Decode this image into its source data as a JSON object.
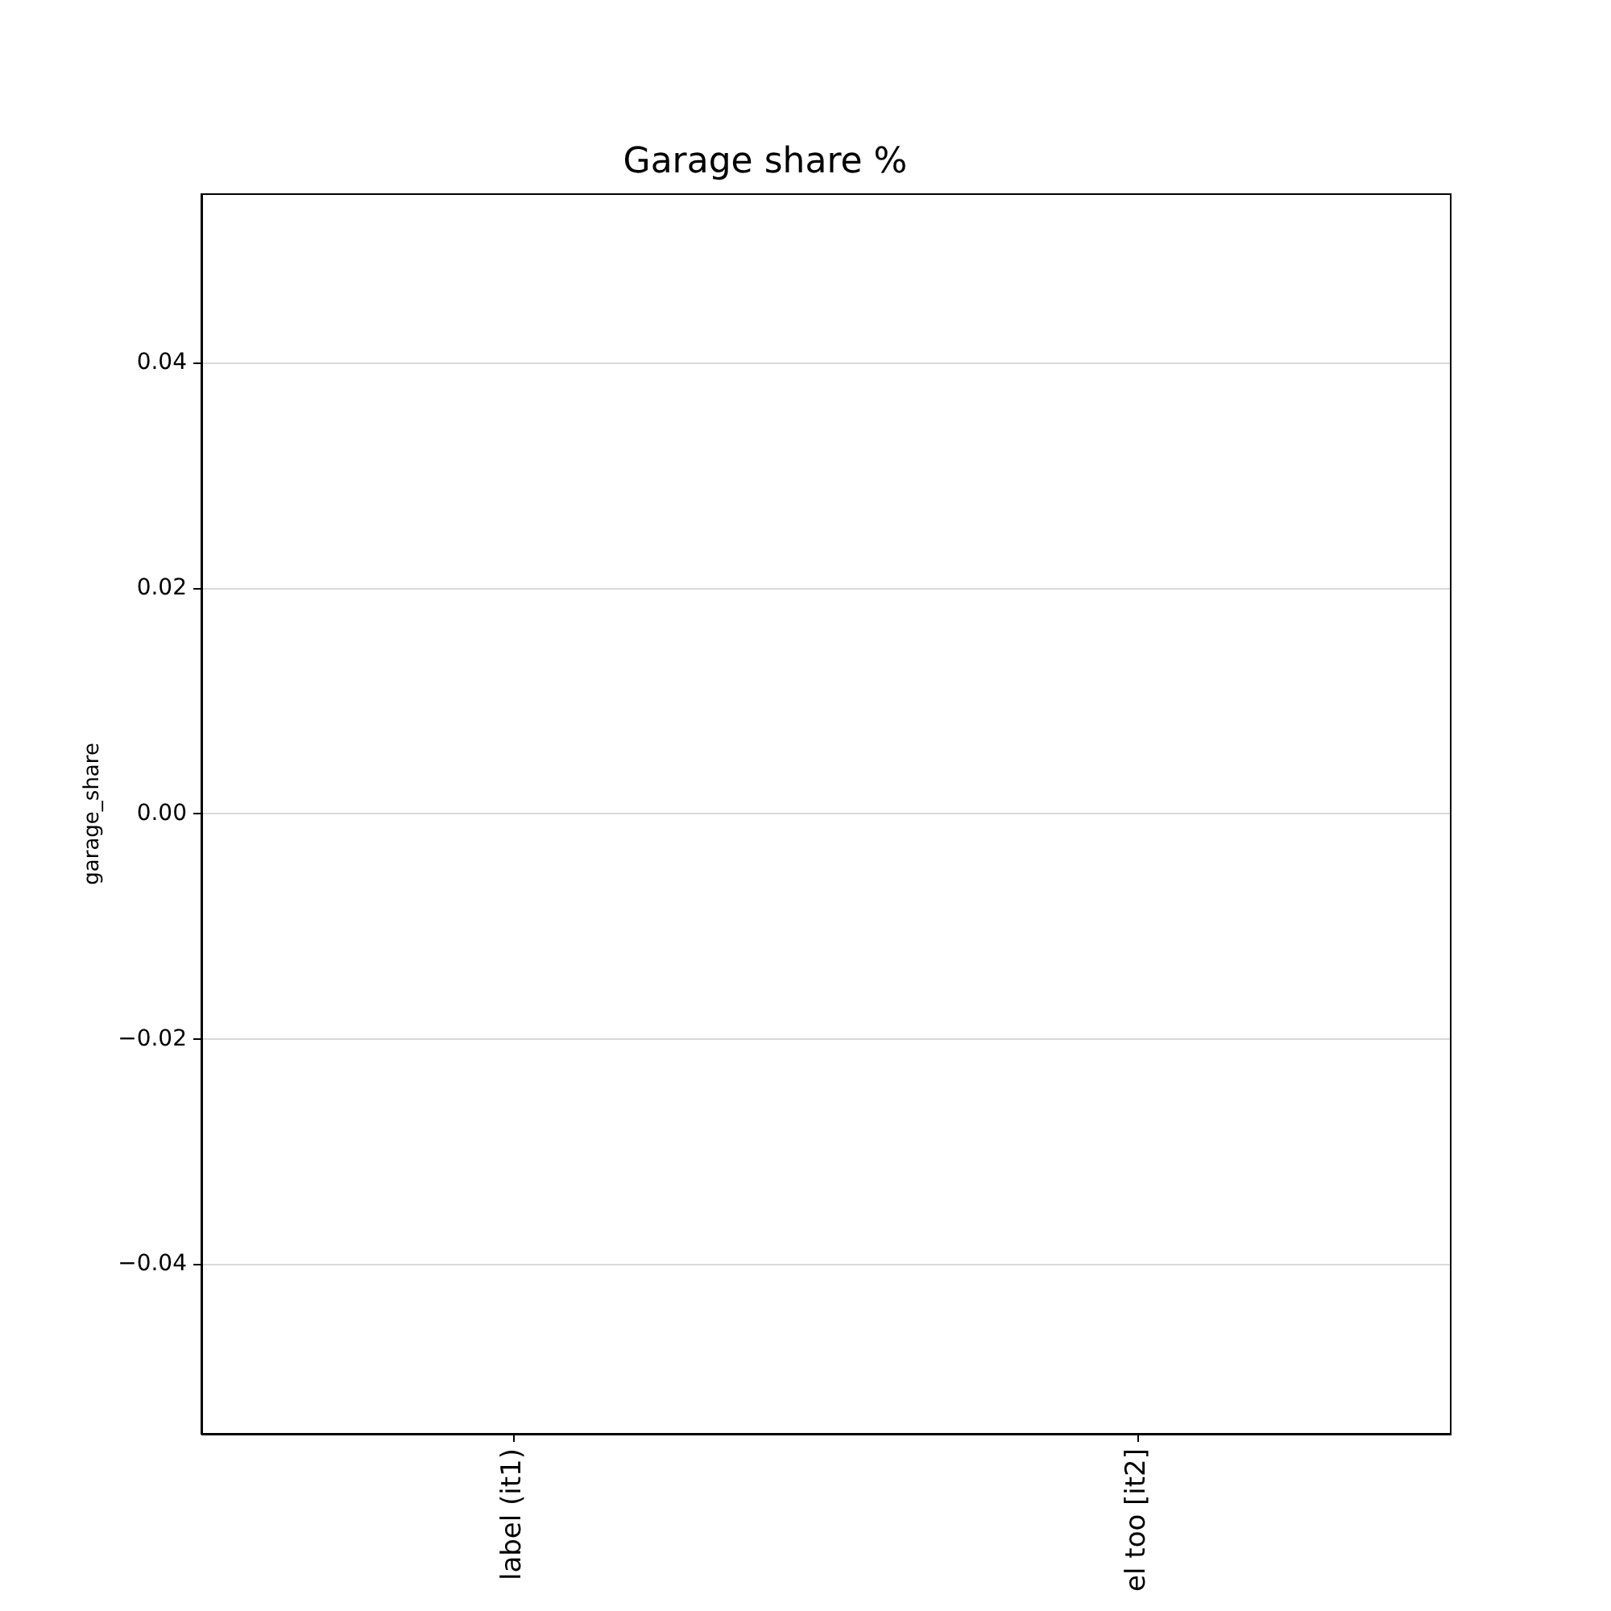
{
  "chart_data": {
    "type": "bar",
    "title": "Garage share %",
    "ylabel": "garage_share",
    "categories": [
      "label (it1)",
      "el too [it2]"
    ],
    "values": [
      0,
      0
    ],
    "ylim": [
      -0.055,
      0.055
    ],
    "yticks": [
      {
        "value": -0.04,
        "label": "−0.04"
      },
      {
        "value": -0.02,
        "label": "−0.02"
      },
      {
        "value": 0,
        "label": "0.00"
      },
      0.02,
      0.04
    ],
    "grid": "y"
  }
}
